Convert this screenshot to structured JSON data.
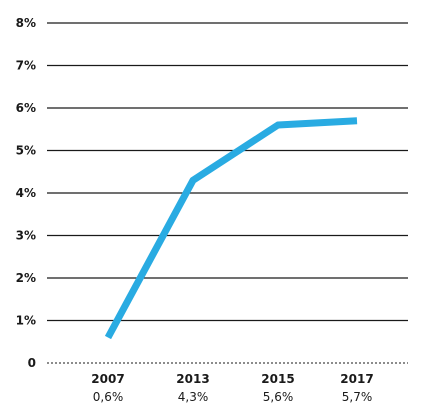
{
  "chart_data": {
    "type": "line",
    "categories": [
      "2007",
      "2013",
      "2015",
      "2017"
    ],
    "category_values": [
      "0,6%",
      "4,3%",
      "5,6%",
      "5,7%"
    ],
    "series": [
      {
        "values": [
          0.6,
          4.3,
          5.6,
          5.7
        ]
      }
    ],
    "ylim": [
      0,
      8
    ],
    "yticks": [
      {
        "value": 0,
        "label": "0"
      },
      {
        "value": 1,
        "label": "1%"
      },
      {
        "value": 2,
        "label": "2%"
      },
      {
        "value": 3,
        "label": "3%"
      },
      {
        "value": 4,
        "label": "4%"
      },
      {
        "value": 5,
        "label": "5%"
      },
      {
        "value": 6,
        "label": "6%"
      },
      {
        "value": 7,
        "label": "7%"
      },
      {
        "value": 8,
        "label": "8%"
      }
    ],
    "grid": true,
    "line_color": "#29abe2",
    "grid_color": "#1a1a1a"
  }
}
